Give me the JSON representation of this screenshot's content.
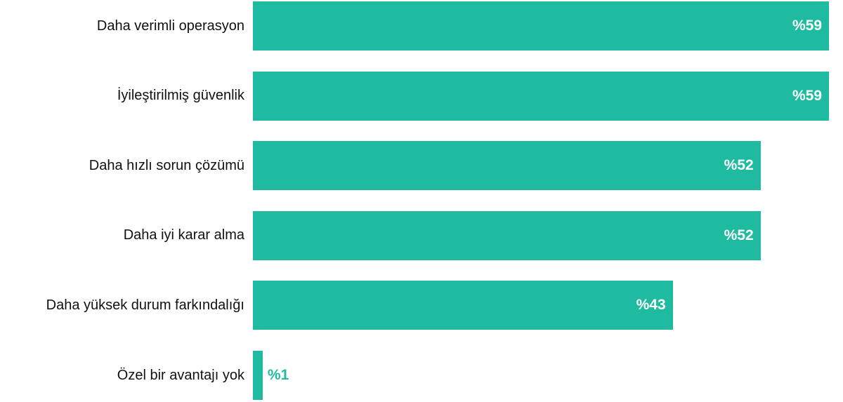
{
  "chart_data": {
    "type": "bar",
    "orientation": "horizontal",
    "categories": [
      "Daha verimli operasyon",
      "İyileştirilmiş güvenlik",
      "Daha hızlı sorun çözümü",
      "Daha iyi karar alma",
      "Daha yüksek durum farkındalığı",
      "Özel bir avantajı yok"
    ],
    "values": [
      59,
      59,
      52,
      52,
      43,
      1
    ],
    "value_labels": [
      "%59",
      "%59",
      "%52",
      "%52",
      "%43",
      "%1"
    ],
    "xlim": [
      0,
      59
    ],
    "grid": false,
    "legend": "none",
    "bar_color": "#1fbba0"
  }
}
